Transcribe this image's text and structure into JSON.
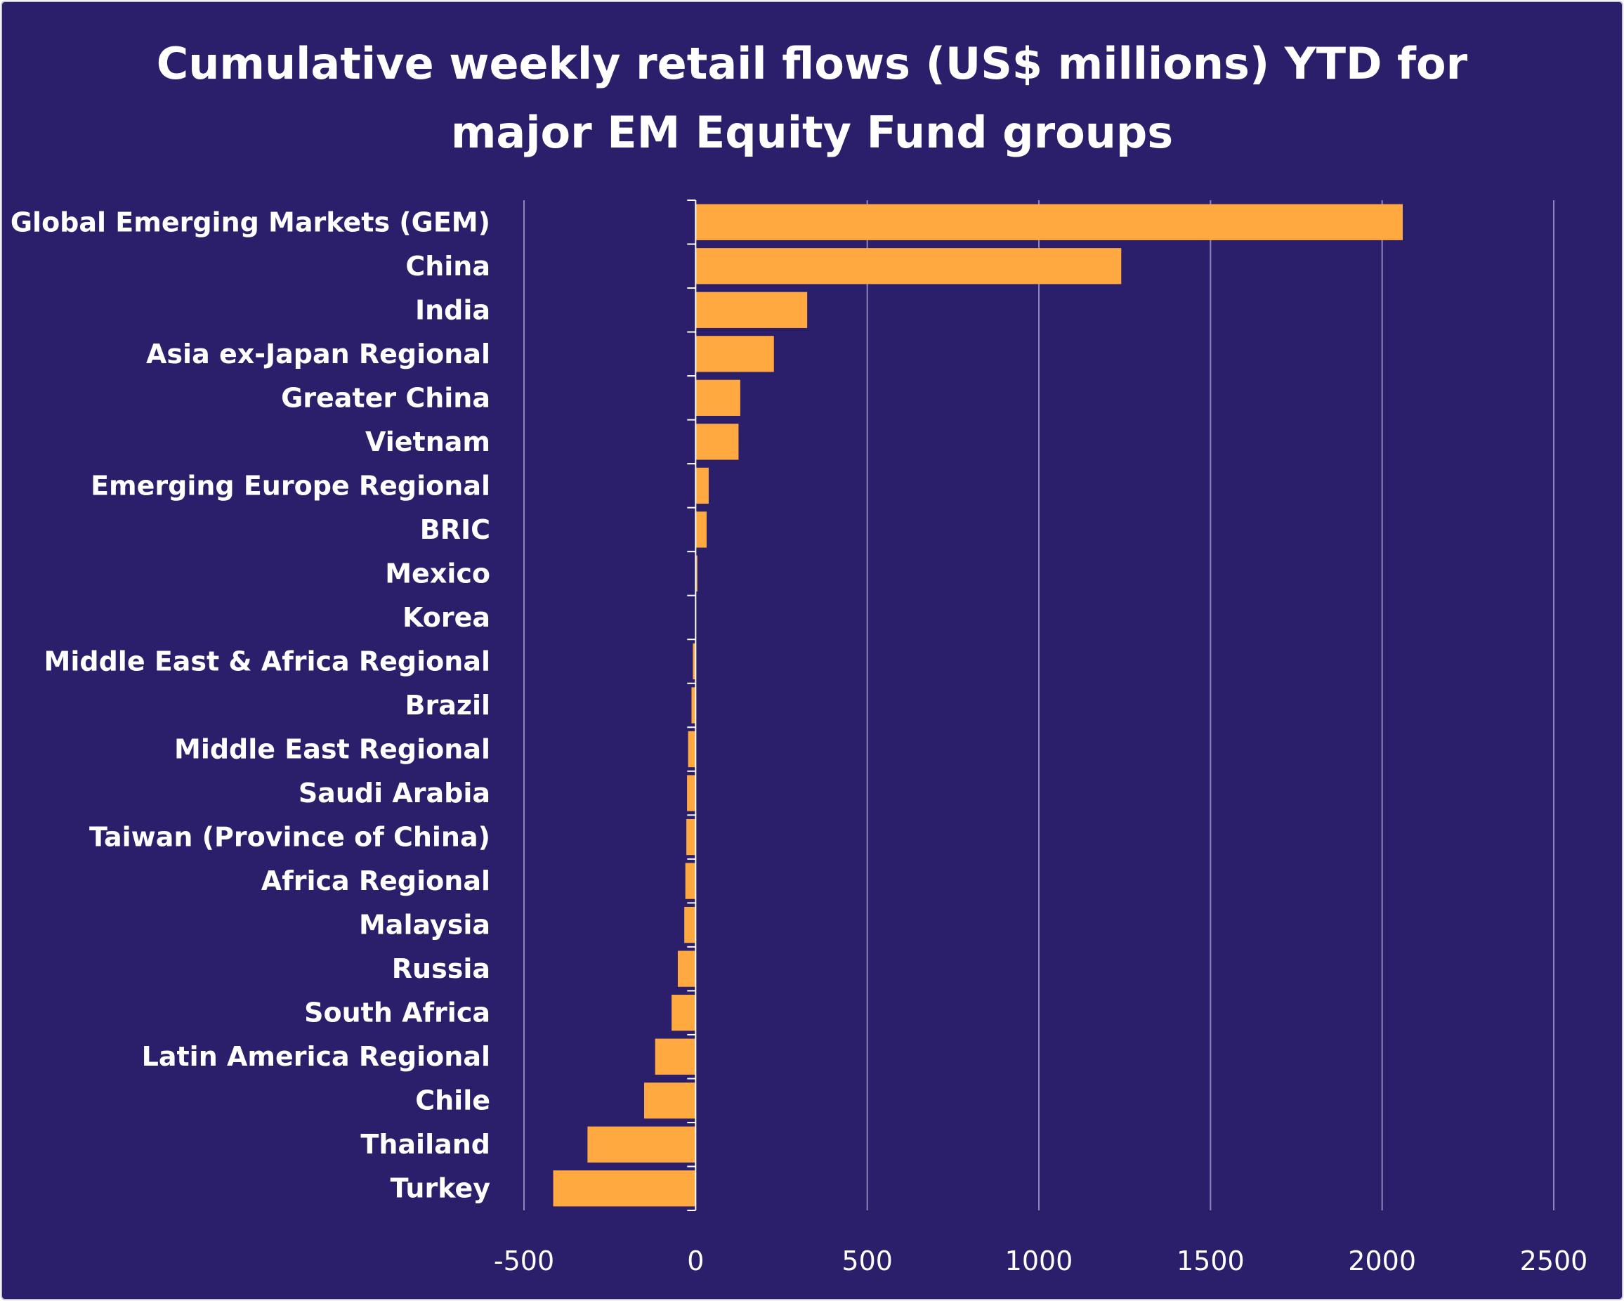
{
  "chart_data": {
    "type": "bar",
    "orientation": "horizontal",
    "title": "Cumulative weekly retail flows (US$ millions) YTD for major EM Equity Fund groups",
    "title_lines": [
      "Cumulative weekly retail flows (US$ millions) YTD for",
      "major EM Equity Fund groups"
    ],
    "xlabel": "",
    "ylabel": "",
    "xlim": [
      -500,
      2500
    ],
    "xticks": [
      -500,
      0,
      500,
      1000,
      1500,
      2000,
      2500
    ],
    "xtick_labels": [
      "-500",
      "0",
      "500",
      "1000",
      "1500",
      "2000",
      "2500"
    ],
    "grid": true,
    "legend": "none",
    "categories": [
      "Global Emerging Markets (GEM)",
      "China",
      "India",
      "Asia ex-Japan Regional",
      "Greater China",
      "Vietnam",
      "Emerging Europe Regional",
      "BRIC",
      "Mexico",
      "Korea",
      "Middle East & Africa Regional",
      "Brazil",
      "Middle East Regional",
      "Saudi Arabia",
      "Taiwan (Province of China)",
      "Africa Regional",
      "Malaysia",
      "Russia",
      "South Africa",
      "Latin America Regional",
      "Chile",
      "Thailand",
      "Turkey"
    ],
    "values": [
      2060,
      1240,
      325,
      228,
      130,
      125,
      38,
      32,
      5,
      0,
      -8,
      -12,
      -22,
      -25,
      -27,
      -30,
      -33,
      -52,
      -70,
      -118,
      -150,
      -315,
      -415
    ],
    "colors": {
      "background": "#2b1f6b",
      "bar": "#ffa940",
      "grid": "#8e86b8",
      "text": "#ffffff"
    }
  }
}
